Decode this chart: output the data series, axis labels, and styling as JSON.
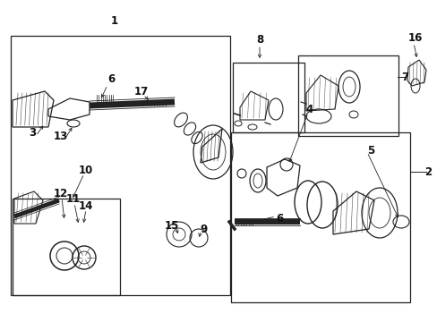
{
  "bg_color": "#ffffff",
  "line_color": "#222222",
  "fig_width": 4.89,
  "fig_height": 3.6,
  "dpi": 100,
  "labels": [
    [
      "1",
      128,
      337
    ],
    [
      "2",
      478,
      168
    ],
    [
      "3",
      36,
      212
    ],
    [
      "4",
      346,
      238
    ],
    [
      "5",
      414,
      192
    ],
    [
      "6",
      124,
      272
    ],
    [
      "6",
      312,
      116
    ],
    [
      "7",
      452,
      274
    ],
    [
      "8",
      290,
      316
    ],
    [
      "9",
      228,
      104
    ],
    [
      "10",
      96,
      170
    ],
    [
      "11",
      82,
      138
    ],
    [
      "12",
      68,
      144
    ],
    [
      "13",
      68,
      208
    ],
    [
      "14",
      96,
      130
    ],
    [
      "15",
      192,
      108
    ],
    [
      "16",
      464,
      318
    ],
    [
      "17",
      158,
      258
    ]
  ]
}
